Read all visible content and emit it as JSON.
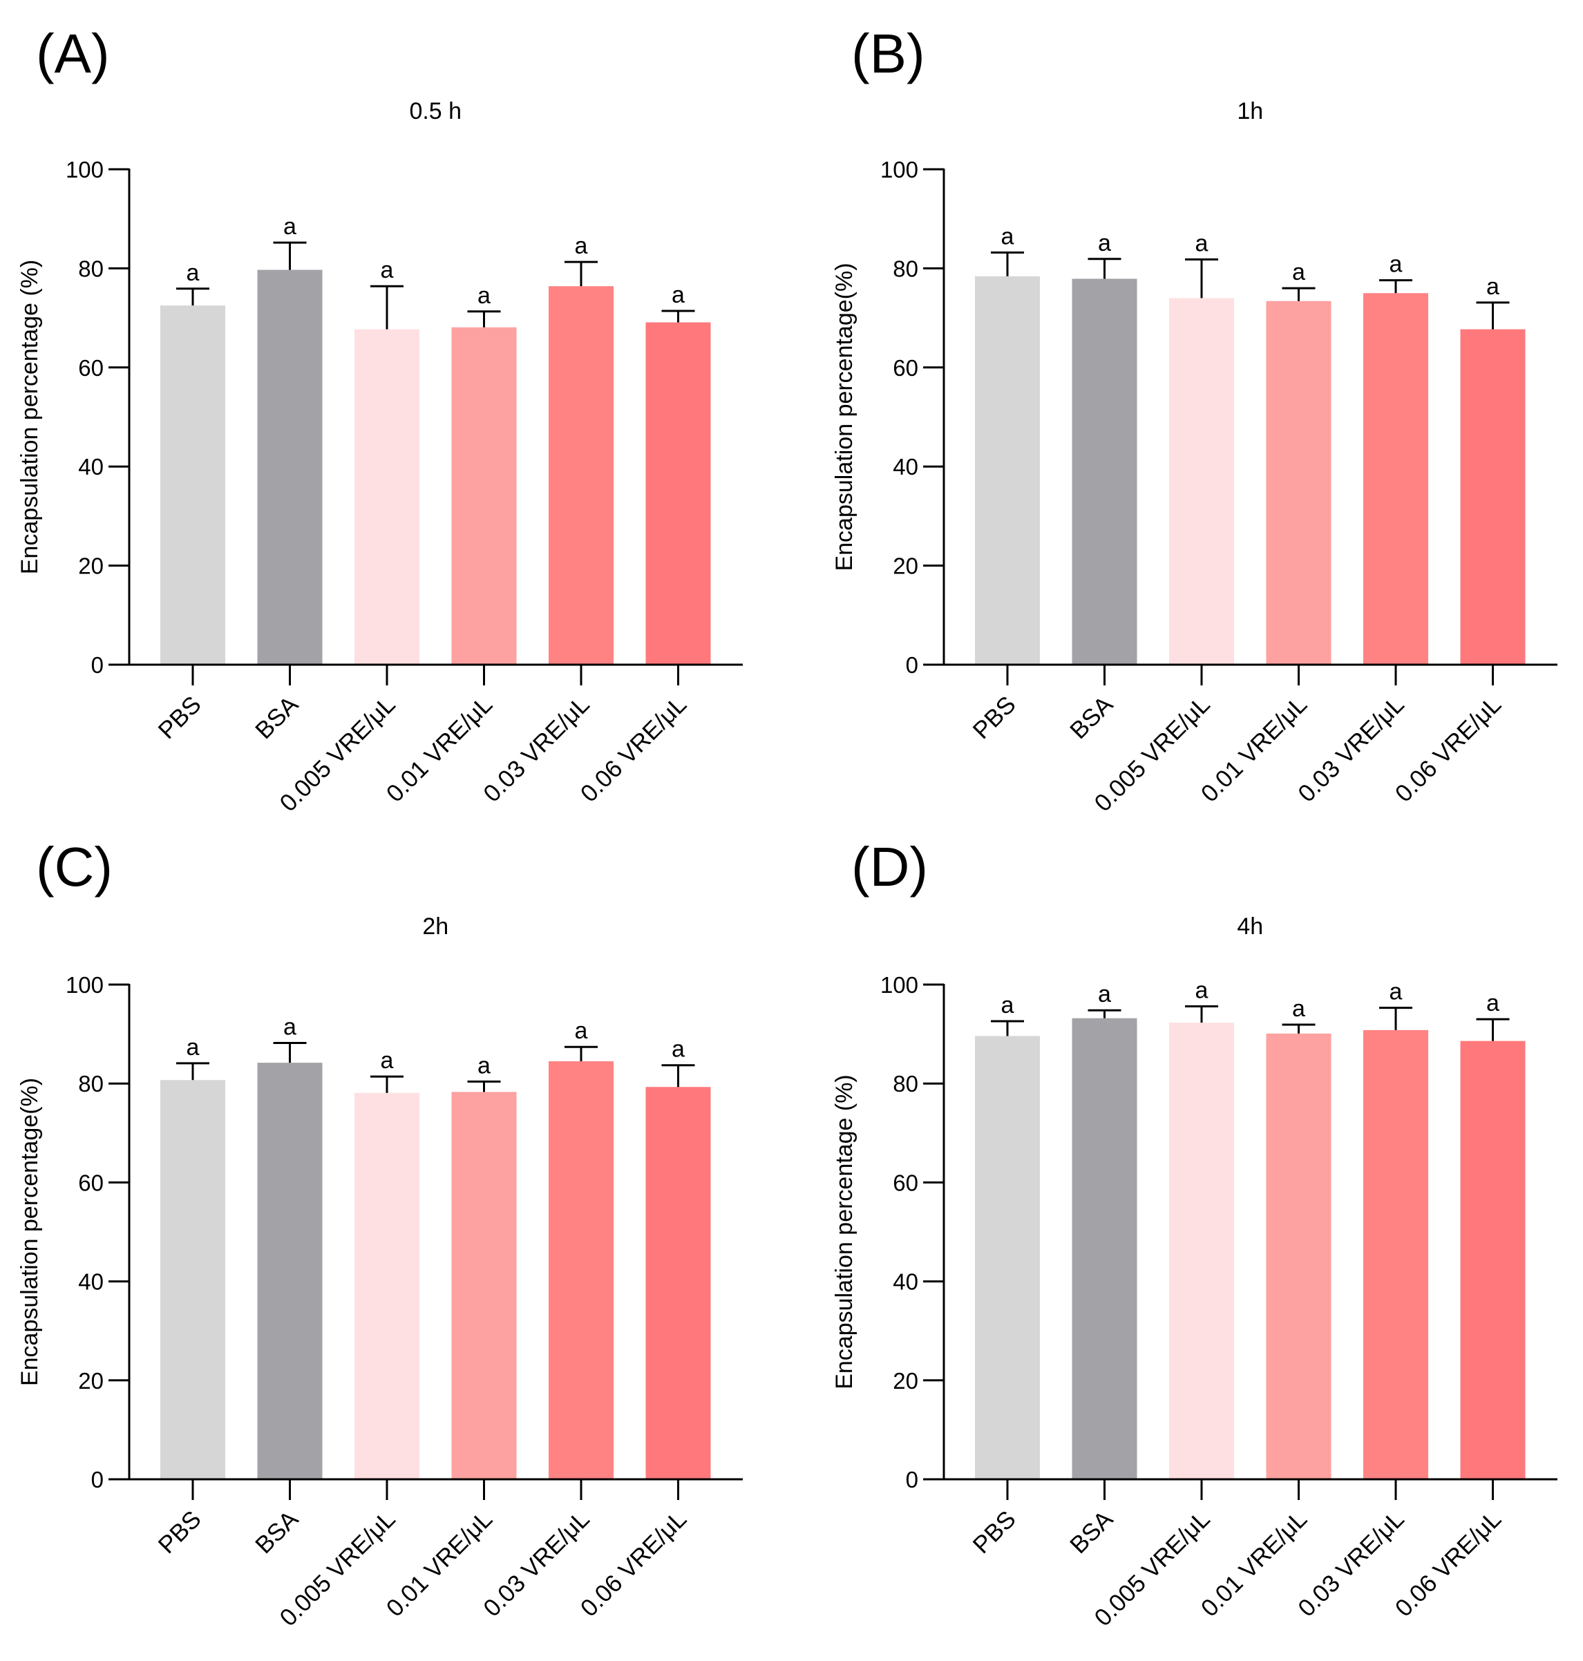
{
  "figure": {
    "accent_colors": [
      "#d6d6d6",
      "#a3a2a7",
      "#ffe0e2",
      "#fea1a1",
      "#ff8383",
      "#ff787b"
    ]
  },
  "chart_data": [
    {
      "panel": "(A)",
      "type": "bar",
      "title": "0.5 h",
      "xlabel": "",
      "ylabel": "Encapsulation percentage (%)",
      "ylim": [
        0,
        100
      ],
      "yticks": [
        0,
        20,
        40,
        60,
        80,
        100
      ],
      "categories": [
        "PBS",
        "BSA",
        "0.005 VRE/μL",
        "0.01 VRE/μL",
        "0.03 VRE/μL",
        "0.06 VRE/μL"
      ],
      "values": [
        72.5,
        79.7,
        67.7,
        68.1,
        76.4,
        69.1
      ],
      "errors": [
        3.4,
        5.5,
        8.7,
        3.2,
        4.9,
        2.3
      ],
      "significance": [
        "a",
        "a",
        "a",
        "a",
        "a",
        "a"
      ]
    },
    {
      "panel": "(B)",
      "type": "bar",
      "title": "1h",
      "xlabel": "",
      "ylabel": "Encapsulation percentage(%)",
      "ylim": [
        0,
        100
      ],
      "yticks": [
        0,
        20,
        40,
        60,
        80,
        100
      ],
      "categories": [
        "PBS",
        "BSA",
        "0.005 VRE/μL",
        "0.01 VRE/μL",
        "0.03 VRE/μL",
        "0.06 VRE/μL"
      ],
      "values": [
        78.4,
        77.9,
        74.0,
        73.4,
        75.0,
        67.7
      ],
      "errors": [
        4.8,
        4.0,
        7.8,
        2.6,
        2.6,
        5.4
      ],
      "significance": [
        "a",
        "a",
        "a",
        "a",
        "a",
        "a"
      ]
    },
    {
      "panel": "(C)",
      "type": "bar",
      "title": "2h",
      "xlabel": "",
      "ylabel": "Encapsulation percentage(%)",
      "ylim": [
        0,
        100
      ],
      "yticks": [
        0,
        20,
        40,
        60,
        80,
        100
      ],
      "categories": [
        "PBS",
        "BSA",
        "0.005 VRE/μL",
        "0.01 VRE/μL",
        "0.03 VRE/μL",
        "0.06 VRE/μL"
      ],
      "values": [
        80.7,
        84.2,
        78.1,
        78.3,
        84.5,
        79.3
      ],
      "errors": [
        3.4,
        4.0,
        3.3,
        2.1,
        2.9,
        4.4
      ],
      "significance": [
        "a",
        "a",
        "a",
        "a",
        "a",
        "a"
      ]
    },
    {
      "panel": "(D)",
      "type": "bar",
      "title": "4h",
      "xlabel": "",
      "ylabel": "Encapsulation percentage (%)",
      "ylim": [
        0,
        100
      ],
      "yticks": [
        0,
        20,
        40,
        60,
        80,
        100
      ],
      "categories": [
        "PBS",
        "BSA",
        "0.005 VRE/μL",
        "0.01 VRE/μL",
        "0.03 VRE/μL",
        "0.06 VRE/μL"
      ],
      "values": [
        89.6,
        93.2,
        92.3,
        90.1,
        90.8,
        88.6
      ],
      "errors": [
        3.0,
        1.6,
        3.3,
        1.8,
        4.5,
        4.4
      ],
      "significance": [
        "a",
        "a",
        "a",
        "a",
        "a",
        "a"
      ]
    }
  ]
}
